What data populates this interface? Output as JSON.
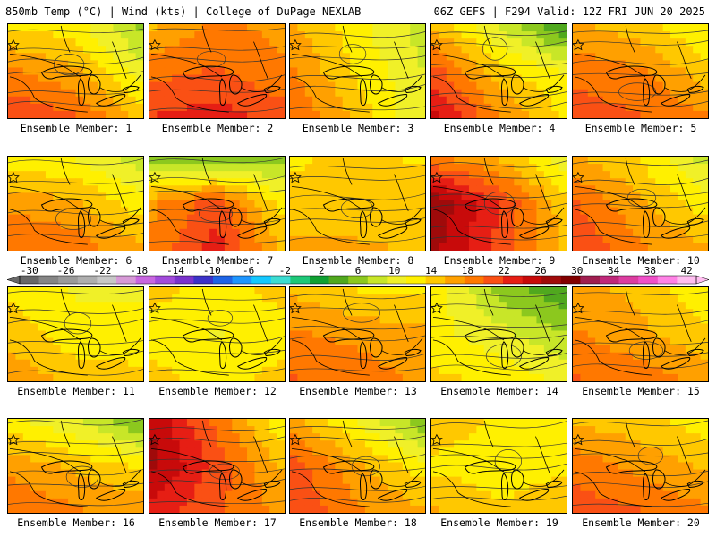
{
  "header": {
    "left": "850mb Temp (°C) | Wind (kts) | College of DuPage NEXLAB",
    "right": "06Z GEFS | F294 Valid: 12Z FRI JUN 20 2025"
  },
  "caption_prefix": "Ensemble Member: ",
  "members": [
    {
      "label": "Ensemble Member: 1",
      "temps": [
        12,
        11,
        5,
        17,
        15,
        9,
        21,
        19,
        14
      ]
    },
    {
      "label": "Ensemble Member: 2",
      "temps": [
        14,
        17,
        16,
        18,
        19,
        17,
        21,
        22,
        20
      ]
    },
    {
      "label": "Ensemble Member: 3",
      "temps": [
        15,
        11,
        7,
        17,
        12,
        8,
        19,
        14,
        8
      ]
    },
    {
      "label": "Ensemble Member: 4",
      "temps": [
        14,
        8,
        1,
        20,
        13,
        10,
        24,
        17,
        12
      ]
    },
    {
      "label": "Ensemble Member: 5",
      "temps": [
        15,
        13,
        10,
        18,
        17,
        13,
        20,
        19,
        17
      ]
    },
    {
      "label": "Ensemble Member: 6",
      "temps": [
        11,
        10,
        7,
        16,
        15,
        11,
        19,
        18,
        15
      ]
    },
    {
      "label": "Ensemble Member: 7",
      "temps": [
        5,
        4,
        5,
        16,
        20,
        11,
        17,
        22,
        14
      ]
    },
    {
      "label": "Ensemble Member: 8",
      "temps": [
        12,
        13,
        12,
        13,
        13,
        14,
        15,
        15,
        14
      ]
    },
    {
      "label": "Ensemble Member: 9",
      "temps": [
        17,
        14,
        9,
        27,
        21,
        13,
        26,
        20,
        14
      ]
    },
    {
      "label": "Ensemble Member: 10",
      "temps": [
        15,
        12,
        7,
        19,
        15,
        11,
        21,
        17,
        15
      ]
    },
    {
      "label": "Ensemble Member: 11",
      "temps": [
        12,
        10,
        10,
        14,
        11,
        11,
        16,
        14,
        13
      ]
    },
    {
      "label": "Ensemble Member: 12",
      "temps": [
        13,
        12,
        13,
        12,
        10,
        12,
        13,
        12,
        13
      ]
    },
    {
      "label": "Ensemble Member: 13",
      "temps": [
        14,
        12,
        12,
        17,
        16,
        15,
        19,
        18,
        16
      ]
    },
    {
      "label": "Ensemble Member: 14",
      "temps": [
        12,
        5,
        2,
        11,
        9,
        6,
        13,
        12,
        10
      ]
    },
    {
      "label": "Ensemble Member: 15",
      "temps": [
        15,
        14,
        10,
        17,
        15,
        13,
        19,
        18,
        16
      ]
    },
    {
      "label": "Ensemble Member: 16",
      "temps": [
        11,
        8,
        3,
        16,
        14,
        12,
        19,
        17,
        16
      ]
    },
    {
      "label": "Ensemble Member: 17",
      "temps": [
        25,
        18,
        10,
        26,
        20,
        14,
        22,
        19,
        16
      ]
    },
    {
      "label": "Ensemble Member: 18",
      "temps": [
        15,
        10,
        4,
        20,
        15,
        11,
        21,
        17,
        15
      ]
    },
    {
      "label": "Ensemble Member: 19",
      "temps": [
        14,
        12,
        11,
        12,
        11,
        12,
        15,
        13,
        14
      ]
    },
    {
      "label": "Ensemble Member: 20",
      "temps": [
        14,
        13,
        11,
        18,
        16,
        14,
        20,
        19,
        17
      ]
    }
  ],
  "colorbar": {
    "labels": [
      "-30",
      "-26",
      "-22",
      "-18",
      "-14",
      "-10",
      "-6",
      "-2",
      "2",
      "6",
      "10",
      "14",
      "18",
      "22",
      "26",
      "30",
      "34",
      "38",
      "42"
    ],
    "colors": [
      "#686868",
      "#858585",
      "#9a9a9a",
      "#aeaeae",
      "#c7c7c7",
      "#d79ad7",
      "#c866e0",
      "#a24bdb",
      "#7a33cc",
      "#3c32c8",
      "#1e64e6",
      "#1e96ff",
      "#14c8ff",
      "#3cdcd2",
      "#1ec878",
      "#0fa032",
      "#50a81e",
      "#8cc81e",
      "#c8e628",
      "#f0f028",
      "#fff000",
      "#ffc800",
      "#ffa000",
      "#ff7800",
      "#fa5014",
      "#e61e14",
      "#c80a0a",
      "#a00a0a",
      "#820000",
      "#a01e50",
      "#c0287a",
      "#dc3ca0",
      "#f050c8",
      "#ff82e6",
      "#ffbef0"
    ],
    "stops": [
      -32,
      42
    ]
  }
}
